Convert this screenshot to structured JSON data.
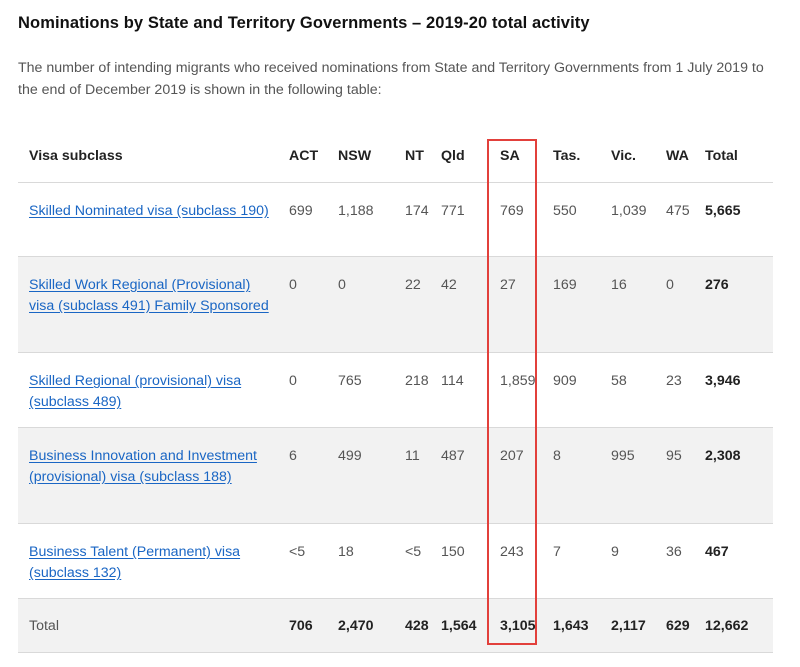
{
  "heading": "Nominations by State and Territory Governments – 2019-20 total activity",
  "intro": "The number of intending migrants who received nominations from State and Territory Governments from 1 July 2019 to the end of December 2019 is shown in the following table:",
  "columns": [
    "Visa subclass",
    "ACT",
    "NSW",
    "NT",
    "Qld",
    "SA",
    "Tas.",
    "Vic.",
    "WA",
    "Total"
  ],
  "rows": [
    {
      "visa": "Skilled Nominated visa (subclass 190)",
      "values": [
        "699",
        "1,188",
        "174",
        "771",
        "769",
        "550",
        "1,039",
        "475",
        "5,665"
      ]
    },
    {
      "visa": "Skilled Work Regional (Provisional) visa (subclass 491) Family Sponsored",
      "values": [
        "0",
        "0",
        "22",
        "42",
        "27",
        "169",
        "16",
        "0",
        "276"
      ]
    },
    {
      "visa": "Skilled Regional (provisional) visa (subclass 489)",
      "values": [
        "0",
        "765",
        "218",
        "114",
        "1,859",
        "909",
        "58",
        "23",
        "3,946"
      ]
    },
    {
      "visa": "Business Innovation and Investment (provisional) visa (subclass 188)",
      "values": [
        "6",
        "499",
        "11",
        "487",
        "207",
        "8",
        "995",
        "95",
        "2,308"
      ]
    },
    {
      "visa": "Business Talent (Permanent) visa (subclass 132)",
      "values": [
        "<5",
        "18",
        "<5",
        "150",
        "243",
        "7",
        "9",
        "36",
        "467"
      ]
    }
  ],
  "total_row": {
    "label": "Total",
    "values": [
      "706",
      "2,470",
      "428",
      "1,564",
      "3,105",
      "1,643",
      "2,117",
      "629",
      "12,662"
    ]
  },
  "colors": {
    "link": "#1a66c4",
    "highlight": "#e2403b",
    "row_shade": "#f2f2f2"
  }
}
